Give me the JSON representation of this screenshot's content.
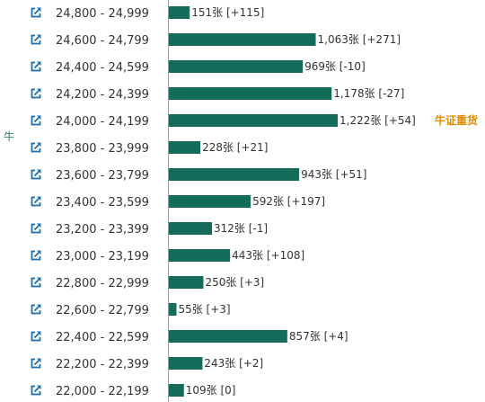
{
  "chart_data": {
    "type": "bar",
    "orientation": "horizontal",
    "bar_color": "#146b5a",
    "icon": "external-link-icon",
    "icon_color": "#1a6fb0",
    "side_marker": {
      "text": "牛",
      "color": "#2e7a5a"
    },
    "unit": "张",
    "categories": [
      "24,800 - 24,999",
      "24,600 - 24,799",
      "24,400 - 24,599",
      "24,200 - 24,399",
      "24,000 - 24,199",
      "23,800 - 23,999",
      "23,600 - 23,799",
      "23,400 - 23,599",
      "23,200 - 23,399",
      "23,000 - 23,199",
      "22,800 - 22,999",
      "22,600 - 22,799",
      "22,400 - 22,599",
      "22,200 - 22,399",
      "22,000 - 22,199"
    ],
    "values": [
      151,
      1063,
      969,
      1178,
      1222,
      228,
      943,
      592,
      312,
      443,
      250,
      55,
      857,
      243,
      109
    ],
    "value_labels": [
      "151张 [+115]",
      "1,063张 [+271]",
      "969张 [-10]",
      "1,178张 [-27]",
      "1,222张 [+54]",
      "228张 [+21]",
      "943张 [+51]",
      "592张 [+197]",
      "312张 [-1]",
      "443张 [+108]",
      "250张 [+3]",
      "55张 [+3]",
      "857张 [+4]",
      "243张 [+2]",
      "109张 [0]"
    ],
    "annotations": [
      {
        "row": 4,
        "text": "牛证重货",
        "color": "#e08a00"
      }
    ],
    "xlim": [
      0,
      1300
    ]
  }
}
